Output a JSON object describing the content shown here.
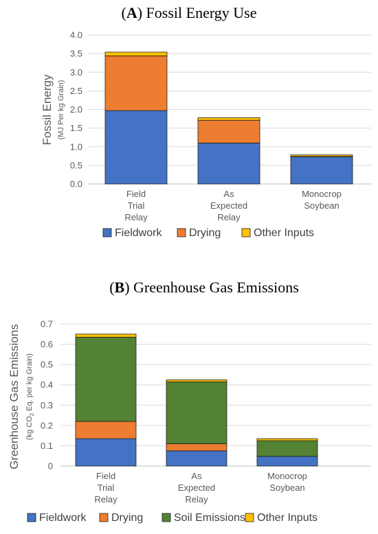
{
  "chart_data": [
    {
      "type": "bar",
      "stacked": true,
      "title_letter": "A",
      "title_text": "Fossil Energy Use",
      "ylabel": "Fossil Energy",
      "ylabel_sub": "(MJ Per kg Grain)",
      "xlabel": "",
      "ylim": [
        0,
        4.0
      ],
      "yticks": [
        "0.0",
        "0.5",
        "1.0",
        "1.5",
        "2.0",
        "2.5",
        "3.0",
        "3.5",
        "4.0"
      ],
      "ytick_values": [
        0,
        0.5,
        1.0,
        1.5,
        2.0,
        2.5,
        3.0,
        3.5,
        4.0
      ],
      "grid": true,
      "legend_position": "bottom",
      "categories": [
        [
          "Field",
          "Trial",
          "Relay"
        ],
        [
          "As",
          "Expected",
          "Relay"
        ],
        [
          "Monocrop",
          "Soybean"
        ]
      ],
      "series": [
        {
          "name": "Fieldwork",
          "color": "#4472c4",
          "values": [
            1.97,
            1.1,
            0.73
          ]
        },
        {
          "name": "Drying",
          "color": "#ed7d31",
          "values": [
            1.47,
            0.61,
            0.01
          ]
        },
        {
          "name": "Other Inputs",
          "color": "#ffc000",
          "values": [
            0.1,
            0.07,
            0.04
          ]
        }
      ]
    },
    {
      "type": "bar",
      "stacked": true,
      "title_letter": "B",
      "title_text": "Greenhouse Gas Emissions",
      "ylabel": "Greenhouse Gas Emissions",
      "ylabel_sub_pre": "(kg CO",
      "ylabel_sub_subscript": "2",
      "ylabel_sub_post": " Eq. per kg Grain)",
      "xlabel": "",
      "ylim": [
        0,
        0.7
      ],
      "yticks": [
        "0",
        "0.1",
        "0.2",
        "0.3",
        "0.4",
        "0.5",
        "0.6",
        "0.7"
      ],
      "ytick_values": [
        0,
        0.1,
        0.2,
        0.3,
        0.4,
        0.5,
        0.6,
        0.7
      ],
      "grid": true,
      "legend_position": "bottom",
      "categories": [
        [
          "Field",
          "Trial",
          "Relay"
        ],
        [
          "As",
          "Expected",
          "Relay"
        ],
        [
          "Monocrop",
          "Soybean"
        ]
      ],
      "series": [
        {
          "name": "Fieldwork",
          "color": "#4472c4",
          "values": [
            0.135,
            0.075,
            0.048
          ]
        },
        {
          "name": "Drying",
          "color": "#ed7d31",
          "values": [
            0.085,
            0.035,
            0.0
          ]
        },
        {
          "name": "Soil Emissions",
          "color": "#548235",
          "values": [
            0.415,
            0.305,
            0.077
          ]
        },
        {
          "name": "Other Inputs",
          "color": "#ffc000",
          "values": [
            0.015,
            0.01,
            0.01
          ]
        }
      ]
    }
  ]
}
